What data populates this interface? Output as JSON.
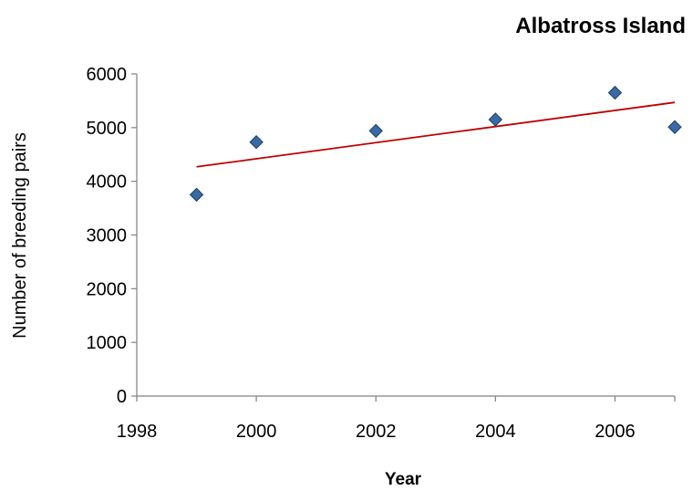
{
  "chart_data": {
    "type": "scatter",
    "title": "Albatross Island",
    "xlabel": "Year",
    "ylabel": "Number of breeding pairs",
    "xlim": [
      1998,
      2007
    ],
    "ylim": [
      0,
      6000
    ],
    "x_ticks": [
      1998,
      2000,
      2002,
      2004,
      2006
    ],
    "y_ticks": [
      0,
      1000,
      2000,
      3000,
      4000,
      5000,
      6000
    ],
    "grid": false,
    "legend": "none",
    "series": [
      {
        "type": "scatter",
        "marker": "diamond",
        "color": "#3a6aa3",
        "points": [
          {
            "x": 1999,
            "y": 3750
          },
          {
            "x": 2000,
            "y": 4730
          },
          {
            "x": 2002,
            "y": 4940
          },
          {
            "x": 2004,
            "y": 5150
          },
          {
            "x": 2006,
            "y": 5650
          },
          {
            "x": 2007,
            "y": 5010
          }
        ]
      },
      {
        "type": "trendline",
        "color": "#c00000",
        "points": [
          {
            "x": 1999,
            "y": 4270
          },
          {
            "x": 2007,
            "y": 5470
          }
        ]
      }
    ]
  }
}
